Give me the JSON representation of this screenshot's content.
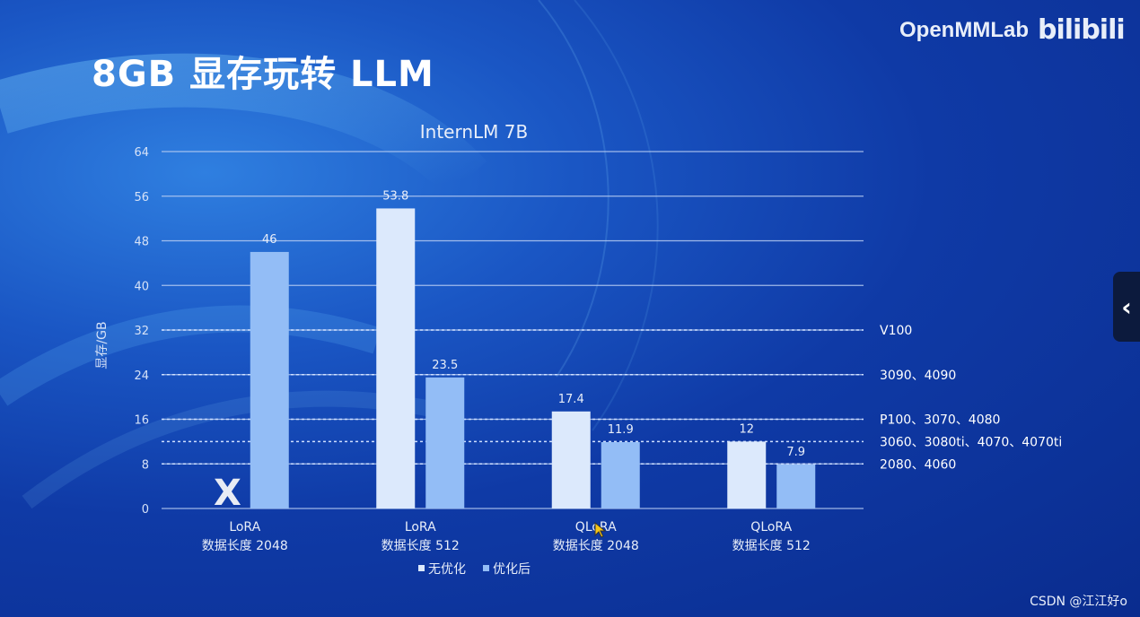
{
  "slide": {
    "title": "8GB 显存玩转 LLM",
    "brand": "OpenMMLab",
    "brand_logo": "bilibili",
    "watermark": "CSDN @江江好o",
    "nav_back_icon": "chevron-left-icon",
    "unavailable_mark": "X"
  },
  "colors": {
    "series_no_opt": "#dce9fc",
    "series_opt": "#93bdf6",
    "gridline": "#b9cdf2",
    "threshold": "#cfe0ff"
  },
  "chart_data": {
    "type": "bar",
    "title": "InternLM 7B",
    "ylabel": "显存/GB",
    "xlabel": "",
    "ylim": [
      0,
      64
    ],
    "yticks": [
      0,
      8,
      16,
      24,
      32,
      40,
      48,
      56,
      64
    ],
    "categories": [
      [
        "LoRA",
        "数据长度 2048"
      ],
      [
        "LoRA",
        "数据长度 512"
      ],
      [
        "QLoRA",
        "数据长度 2048"
      ],
      [
        "QLoRA",
        "数据长度 512"
      ]
    ],
    "series": [
      {
        "name": "无优化",
        "values": [
          null,
          53.8,
          17.4,
          12
        ]
      },
      {
        "name": "优化后",
        "values": [
          46,
          23.5,
          11.9,
          7.9
        ]
      }
    ],
    "legend_position": "bottom",
    "grid": true,
    "thresholds": [
      {
        "value": 32,
        "label": "V100"
      },
      {
        "value": 24,
        "label": "3090、4090"
      },
      {
        "value": 16,
        "label": "P100、3070、4080"
      },
      {
        "value": 12,
        "label": "3060、3080ti、4070、4070ti"
      },
      {
        "value": 8,
        "label": "2080、4060"
      }
    ]
  }
}
